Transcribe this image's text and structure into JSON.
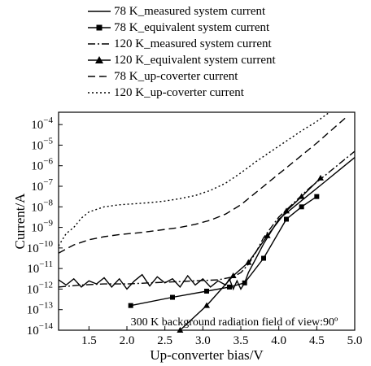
{
  "chart_data": {
    "type": "line",
    "xlabel": "Up-converter bias/V",
    "ylabel": "Current/A",
    "xlim": [
      1.1,
      5.0
    ],
    "ylim_exponent": [
      -14,
      -3.4
    ],
    "yscale": "log",
    "x_ticks": [
      "1.5",
      "2.0",
      "2.5",
      "3.0",
      "3.5",
      "4.0",
      "4.5",
      "5.0"
    ],
    "x_tick_values": [
      1.5,
      2.0,
      2.5,
      3.0,
      3.5,
      4.0,
      4.5,
      5.0
    ],
    "y_tick_exponents": [
      -14,
      -13,
      -12,
      -11,
      -10,
      -9,
      -8,
      -7,
      -6,
      -5,
      -4
    ],
    "y_tick_base": "10",
    "annotation": "300 K background radiation field of view:90º",
    "legend_position": "top",
    "series": [
      {
        "name": "78 K_measured system current",
        "style": "solid",
        "marker": "none",
        "x": [
          1.1,
          1.2,
          1.3,
          1.4,
          1.5,
          1.6,
          1.7,
          1.8,
          1.9,
          2.0,
          2.1,
          2.2,
          2.3,
          2.4,
          2.5,
          2.6,
          2.7,
          2.8,
          2.9,
          3.0,
          3.1,
          3.2,
          3.3,
          3.35,
          3.4,
          3.45,
          3.5,
          3.55,
          3.6,
          3.7,
          3.8,
          3.9,
          4.0,
          4.2,
          4.4,
          4.6,
          4.8,
          5.0
        ],
        "y_log10": [
          -11.55,
          -11.8,
          -11.5,
          -11.9,
          -11.6,
          -11.75,
          -11.45,
          -11.9,
          -11.5,
          -12.0,
          -11.6,
          -11.3,
          -11.85,
          -11.4,
          -11.7,
          -11.5,
          -11.9,
          -11.35,
          -11.8,
          -11.5,
          -11.9,
          -11.6,
          -11.8,
          -11.5,
          -12.0,
          -11.6,
          -12.0,
          -11.7,
          -11.2,
          -10.5,
          -9.8,
          -9.2,
          -8.6,
          -8.0,
          -7.4,
          -6.8,
          -6.2,
          -5.6
        ]
      },
      {
        "name": "78 K_equivalent system current",
        "style": "solid",
        "marker": "square",
        "x": [
          2.05,
          2.6,
          3.05,
          3.35,
          3.55,
          3.8,
          4.1,
          4.3,
          4.5
        ],
        "y_log10": [
          -12.8,
          -12.4,
          -12.1,
          -11.9,
          -11.7,
          -10.5,
          -8.6,
          -8.0,
          -7.5
        ]
      },
      {
        "name": "120 K_measured system current",
        "style": "dashdot",
        "marker": "none",
        "x": [
          1.1,
          1.4,
          1.7,
          2.0,
          2.3,
          2.6,
          2.9,
          3.2,
          3.4,
          3.5,
          3.6,
          3.7,
          3.8,
          4.0,
          4.2,
          4.4,
          4.6,
          4.8,
          5.0
        ],
        "y_log10": [
          -11.9,
          -11.8,
          -11.75,
          -11.75,
          -11.7,
          -11.65,
          -11.6,
          -11.55,
          -11.4,
          -11.2,
          -10.8,
          -10.2,
          -9.5,
          -8.5,
          -7.8,
          -7.1,
          -6.5,
          -5.9,
          -5.3
        ]
      },
      {
        "name": "120 K_equivalent system current",
        "style": "solid",
        "marker": "triangle",
        "x": [
          2.7,
          3.05,
          3.4,
          3.6,
          3.85,
          4.1,
          4.3,
          4.55
        ],
        "y_log10": [
          -14.0,
          -12.8,
          -11.35,
          -10.7,
          -9.4,
          -8.2,
          -7.5,
          -6.6
        ]
      },
      {
        "name": "78 K_up-coverter current",
        "style": "dashed",
        "marker": "none",
        "x": [
          1.1,
          1.3,
          1.5,
          1.7,
          1.9,
          2.1,
          2.3,
          2.5,
          2.7,
          2.9,
          3.1,
          3.3,
          3.5,
          3.7,
          3.9,
          4.1,
          4.3,
          4.5,
          4.7,
          4.9
        ],
        "y_log10": [
          -10.25,
          -9.85,
          -9.6,
          -9.45,
          -9.35,
          -9.28,
          -9.2,
          -9.1,
          -9.0,
          -8.85,
          -8.65,
          -8.35,
          -7.9,
          -7.3,
          -6.7,
          -6.1,
          -5.5,
          -4.9,
          -4.25,
          -3.6
        ]
      },
      {
        "name": "120 K_up-coverter current",
        "style": "dotted",
        "marker": "none",
        "x": [
          1.1,
          1.2,
          1.3,
          1.4,
          1.5,
          1.7,
          1.9,
          2.1,
          2.3,
          2.5,
          2.7,
          2.9,
          3.1,
          3.3,
          3.5,
          3.7,
          3.9,
          4.1,
          4.3,
          4.5,
          4.65
        ],
        "y_log10": [
          -9.9,
          -9.3,
          -9.0,
          -8.55,
          -8.25,
          -8.0,
          -7.9,
          -7.85,
          -7.8,
          -7.72,
          -7.6,
          -7.45,
          -7.2,
          -6.85,
          -6.35,
          -5.8,
          -5.3,
          -4.8,
          -4.3,
          -3.85,
          -3.45
        ]
      }
    ]
  }
}
